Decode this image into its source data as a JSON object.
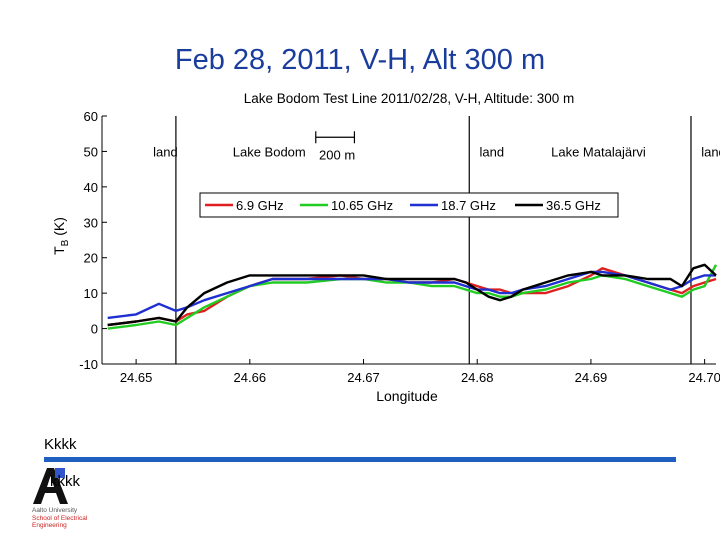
{
  "slide": {
    "title": "Feb 28, 2011, V-H, Alt 300 m",
    "footer_line1": "Kkkk",
    "footer_line2": "kkkk"
  },
  "logo": {
    "text_line1": "Aalto University",
    "text_line2": "School of Electrical",
    "text_line3": "Engineering",
    "colors": {
      "letter": "#111111",
      "accent": "#3355cc",
      "subtext": "#cc2222"
    }
  },
  "chart_data": {
    "type": "line",
    "title": "Lake Bodom Test Line 2011/02/28, V-H, Altitude: 300 m",
    "xlabel": "Longitude",
    "ylabel": "T",
    "ylabel_sub": "B",
    "ylabel_unit": "(K)",
    "xlim": [
      24.647,
      24.701
    ],
    "ylim": [
      -10,
      60
    ],
    "xticks": [
      24.65,
      24.66,
      24.67,
      24.68,
      24.69,
      24.7
    ],
    "xtick_labels": [
      "24.65",
      "24.66",
      "24.67",
      "24.68",
      "24.69",
      "24.70"
    ],
    "yticks": [
      60,
      50,
      40,
      30,
      20,
      10,
      0,
      -10
    ],
    "ytick_labels": [
      "60",
      "50",
      "40",
      "30",
      "20",
      "10",
      "0",
      "-10"
    ],
    "grid": false,
    "legend_position": "top-right",
    "vlines": [
      24.6535,
      24.6793,
      24.6988
    ],
    "region_labels": [
      {
        "text": "land",
        "x": 24.6515
      },
      {
        "text": "Lake Bodom",
        "x": 24.6585
      },
      {
        "text": "land",
        "x": 24.6802
      },
      {
        "text": "Lake Matalajärvi",
        "x": 24.6865
      },
      {
        "text": "land",
        "x": 24.6997
      }
    ],
    "scale_bar": {
      "label": "200 m",
      "x0": 24.6658,
      "x1": 24.6692,
      "y": 54
    },
    "series": [
      {
        "name": "6.9 GHz",
        "color": "#e02020",
        "x": [
          24.6475,
          24.65,
          24.652,
          24.6535,
          24.6545,
          24.656,
          24.658,
          24.66,
          24.662,
          24.665,
          24.668,
          24.67,
          24.672,
          24.674,
          24.676,
          24.678,
          24.679,
          24.68,
          24.681,
          24.682,
          24.683,
          24.684,
          24.686,
          24.688,
          24.69,
          24.691,
          24.693,
          24.695,
          24.697,
          24.698,
          24.699,
          24.7,
          24.701
        ],
        "y": [
          1,
          2,
          3,
          2,
          4,
          5,
          9,
          12,
          14,
          14,
          15,
          14,
          14,
          13,
          13,
          14,
          13,
          12,
          11,
          11,
          10,
          10,
          10,
          12,
          15,
          17,
          15,
          13,
          11,
          10,
          12,
          13,
          14
        ]
      },
      {
        "name": "10.65 GHz",
        "color": "#22cc22",
        "x": [
          24.6475,
          24.65,
          24.652,
          24.6535,
          24.6545,
          24.656,
          24.658,
          24.66,
          24.662,
          24.665,
          24.668,
          24.67,
          24.672,
          24.674,
          24.676,
          24.678,
          24.679,
          24.68,
          24.681,
          24.682,
          24.683,
          24.684,
          24.686,
          24.688,
          24.69,
          24.691,
          24.693,
          24.695,
          24.697,
          24.698,
          24.699,
          24.7,
          24.701
        ],
        "y": [
          0,
          1,
          2,
          1,
          3,
          6,
          9,
          12,
          13,
          13,
          14,
          14,
          13,
          13,
          12,
          12,
          11,
          10,
          10,
          9,
          9,
          10,
          11,
          13,
          14,
          15,
          14,
          12,
          10,
          9,
          11,
          12,
          18
        ]
      },
      {
        "name": "18.7 GHz",
        "color": "#1f2fd0",
        "x": [
          24.6475,
          24.65,
          24.652,
          24.6535,
          24.6545,
          24.656,
          24.658,
          24.66,
          24.662,
          24.665,
          24.668,
          24.67,
          24.672,
          24.674,
          24.676,
          24.678,
          24.679,
          24.68,
          24.681,
          24.682,
          24.683,
          24.684,
          24.686,
          24.688,
          24.69,
          24.691,
          24.693,
          24.695,
          24.697,
          24.698,
          24.699,
          24.7,
          24.701
        ],
        "y": [
          3,
          4,
          7,
          5,
          6,
          8,
          10,
          12,
          14,
          14,
          14,
          14,
          14,
          13,
          13,
          13,
          12,
          11,
          11,
          10,
          10,
          11,
          12,
          14,
          16,
          16,
          15,
          13,
          11,
          12,
          14,
          15,
          15
        ]
      },
      {
        "name": "36.5 GHz",
        "color": "#000000",
        "x": [
          24.6475,
          24.65,
          24.652,
          24.6535,
          24.6545,
          24.656,
          24.658,
          24.66,
          24.662,
          24.665,
          24.668,
          24.67,
          24.672,
          24.674,
          24.676,
          24.678,
          24.679,
          24.68,
          24.681,
          24.682,
          24.683,
          24.684,
          24.686,
          24.688,
          24.69,
          24.691,
          24.693,
          24.695,
          24.697,
          24.698,
          24.699,
          24.7,
          24.701
        ],
        "y": [
          1,
          2,
          3,
          2,
          6,
          10,
          13,
          15,
          15,
          15,
          15,
          15,
          14,
          14,
          14,
          14,
          13,
          11,
          9,
          8,
          9,
          11,
          13,
          15,
          16,
          15,
          15,
          14,
          14,
          12,
          17,
          18,
          15
        ]
      }
    ]
  }
}
